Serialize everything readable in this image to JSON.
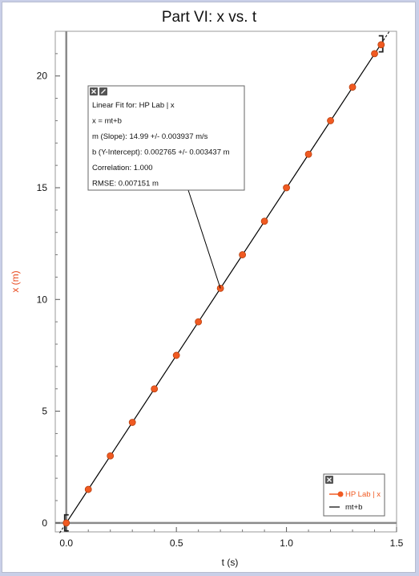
{
  "chart_data": {
    "type": "scatter",
    "title": "Part VI: x vs. t",
    "xlabel": "t (s)",
    "ylabel": "x (m)",
    "xlim": [
      -0.05,
      1.5
    ],
    "ylim": [
      -0.4,
      22.0
    ],
    "x_ticks": [
      0.0,
      0.5,
      1.0,
      1.5
    ],
    "x_tick_labels": [
      "0.0",
      "0.5",
      "1.0",
      "1.5"
    ],
    "y_ticks": [
      0,
      5,
      10,
      15,
      20
    ],
    "y_tick_labels": [
      "0",
      "5",
      "10",
      "15",
      "20"
    ],
    "grid": false,
    "series": [
      {
        "name": "HP Lab | x",
        "color": "#f05a22",
        "x": [
          0.0,
          0.1,
          0.2,
          0.3,
          0.4,
          0.5,
          0.6,
          0.7,
          0.8,
          0.9,
          1.0,
          1.1,
          1.2,
          1.3,
          1.4,
          1.43
        ],
        "y": [
          0.0,
          1.5,
          3.0,
          4.5,
          6.0,
          7.5,
          9.0,
          10.5,
          12.0,
          13.5,
          15.0,
          16.5,
          18.0,
          19.5,
          21.0,
          21.4
        ]
      }
    ],
    "fit": {
      "name": "mt+b",
      "slope": 14.99,
      "intercept": 0.002765,
      "color": "#000000"
    },
    "fit_box": {
      "lines": [
        "Linear Fit for: HP Lab | x",
        "x = mt+b",
        "m (Slope): 14.99 +/- 0.003937 m/s",
        "b (Y-Intercept): 0.002765 +/- 0.003437 m",
        "Correlation: 1.000",
        "RMSE: 0.007151 m"
      ],
      "anchor_t": 0.7
    },
    "legend": {
      "placement": "bottom-right",
      "entries": [
        "HP Lab | x",
        "mt+b"
      ]
    }
  }
}
